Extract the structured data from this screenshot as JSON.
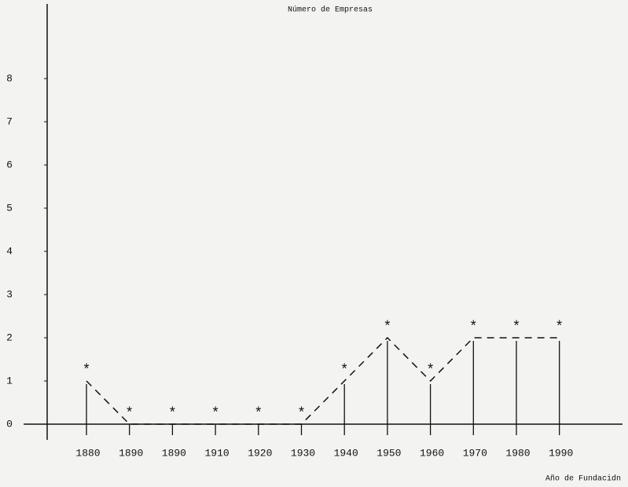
{
  "chart_data": {
    "type": "line",
    "title": "Número de Empresas",
    "x_label": "Año de Fundacidn",
    "categories": [
      "1880",
      "1890",
      "1890",
      "1910",
      "1920",
      "1930",
      "1940",
      "1950",
      "1960",
      "1970",
      "1980",
      "1990"
    ],
    "values": [
      1,
      0,
      0,
      0,
      0,
      0,
      1,
      2,
      1,
      2,
      2,
      2
    ],
    "color": "#111111",
    "ylim": [
      0,
      8
    ],
    "yticks": [
      0,
      1,
      2,
      3,
      4,
      5,
      6,
      7,
      8
    ],
    "marker": "*",
    "line_style": "dashed"
  }
}
